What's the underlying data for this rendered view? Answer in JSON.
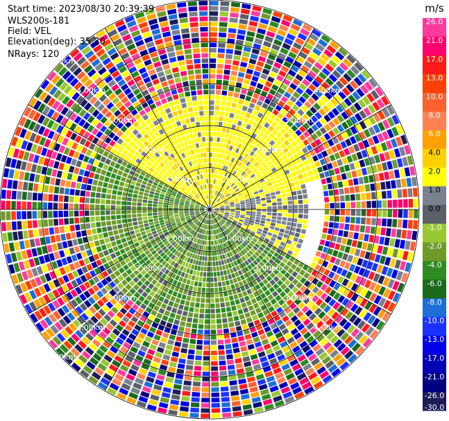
{
  "info": {
    "start_time": "Start time: 2023/08/30 20:39:39",
    "site": "WLS200s-181",
    "field": "Field: VEL",
    "elevation": "Elevation(deg): 35.30",
    "nrays": "NRays: 120"
  },
  "chart_data": {
    "type": "heatmap",
    "projection": "polar",
    "field": "VEL",
    "unit": "m/s",
    "n_rays": 120,
    "max_range_km": 5.0,
    "range_rings_km": [
      1.0,
      2.0,
      3.0,
      4.0,
      5.0
    ],
    "spokes_deg": [
      0,
      30,
      60,
      90,
      120,
      150,
      180,
      210,
      240,
      270,
      300,
      330
    ],
    "range_labels": [
      {
        "text": "1.00km",
        "az": 45,
        "r": 1.0
      },
      {
        "text": "2.00km",
        "az": 45,
        "r": 2.0
      },
      {
        "text": "3.00km",
        "az": 45,
        "r": 3.0
      },
      {
        "text": "4.00km",
        "az": 45,
        "r": 4.0
      },
      {
        "text": "1.00km",
        "az": 315,
        "r": 1.0
      },
      {
        "text": "2.00km",
        "az": 315,
        "r": 2.0
      },
      {
        "text": "3.00km",
        "az": 315,
        "r": 3.0
      },
      {
        "text": "4.00km",
        "az": 315,
        "r": 4.0
      },
      {
        "text": "5.00km",
        "az": 315,
        "r": 5.0
      },
      {
        "text": "1.00km",
        "az": 135,
        "r": 1.0
      },
      {
        "text": "2.00km",
        "az": 135,
        "r": 2.0
      },
      {
        "text": "3.00km",
        "az": 135,
        "r": 3.0
      },
      {
        "text": "4.00km",
        "az": 135,
        "r": 4.0
      },
      {
        "text": "1.00km",
        "az": 225,
        "r": 1.0
      },
      {
        "text": "2.00km",
        "az": 225,
        "r": 2.0
      },
      {
        "text": "3.00km",
        "az": 225,
        "r": 3.0
      },
      {
        "text": "4.00km",
        "az": 225,
        "r": 4.0
      },
      {
        "text": "5.00km",
        "az": 225,
        "r": 5.0
      }
    ],
    "colorbar": {
      "ticks": [
        26.0,
        21.0,
        17.0,
        13.0,
        10.0,
        8.0,
        6.0,
        4.0,
        2.0,
        1.0,
        0.0,
        -1.0,
        -2.0,
        -4.0,
        -6.0,
        -8.0,
        -10.0,
        -13.0,
        -17.0,
        -21.0,
        -26.0,
        -30.0
      ],
      "tick_labels": [
        "26.0",
        "21.0",
        "17.0",
        "13.0",
        "10.0",
        "8.0",
        "6.0",
        "4.0",
        "2.0",
        "1.0",
        "0.0",
        "-1.0",
        "-2.0",
        "-4.0",
        "-6.0",
        "-8.0",
        "-10.0",
        "-13.0",
        "-17.0",
        "-21.0",
        "-26.0",
        "-30.0"
      ],
      "bin_colors": [
        "#ff3a9c",
        "#ff006e",
        "#ff1a1a",
        "#ff4000",
        "#ff6030",
        "#ff8050",
        "#ffa000",
        "#ffd000",
        "#ffff00",
        "#7a8290",
        "#5a6068",
        "#9ac832",
        "#6e9a2a",
        "#2e8b22",
        "#1a6a1a",
        "#1e6ed6",
        "#1a32ff",
        "#0000e6",
        "#0000b4",
        "#000080",
        "#1c1c5a"
      ]
    },
    "sectors": [
      {
        "az": [
          300,
          75
        ],
        "r": [
          0.15,
          2.7
        ],
        "values": [
          2.0,
          1.0,
          4.0
        ],
        "weights": [
          0.78,
          0.12,
          0.1
        ]
      },
      {
        "az": [
          75,
          120
        ],
        "r": [
          0.15,
          2.4
        ],
        "values": [
          1.0,
          2.0,
          0.0
        ],
        "weights": [
          0.55,
          0.3,
          0.15
        ]
      },
      {
        "az": [
          120,
          300
        ],
        "r": [
          0.15,
          2.9
        ],
        "values": [
          -2.0,
          -4.0,
          0.0,
          -1.0
        ],
        "weights": [
          0.45,
          0.3,
          0.15,
          0.1
        ]
      },
      {
        "az": [
          0,
          360
        ],
        "r": [
          2.7,
          5.0
        ],
        "values": [
          26.0,
          21.0,
          17.0,
          13.0,
          10.0,
          8.0,
          6.0,
          4.0,
          2.0,
          1.0,
          0.0,
          -1.0,
          -2.0,
          -4.0,
          -6.0,
          -8.0,
          -10.0,
          -13.0,
          -17.0,
          -21.0,
          -26.0
        ],
        "weights": "uniform"
      }
    ]
  }
}
